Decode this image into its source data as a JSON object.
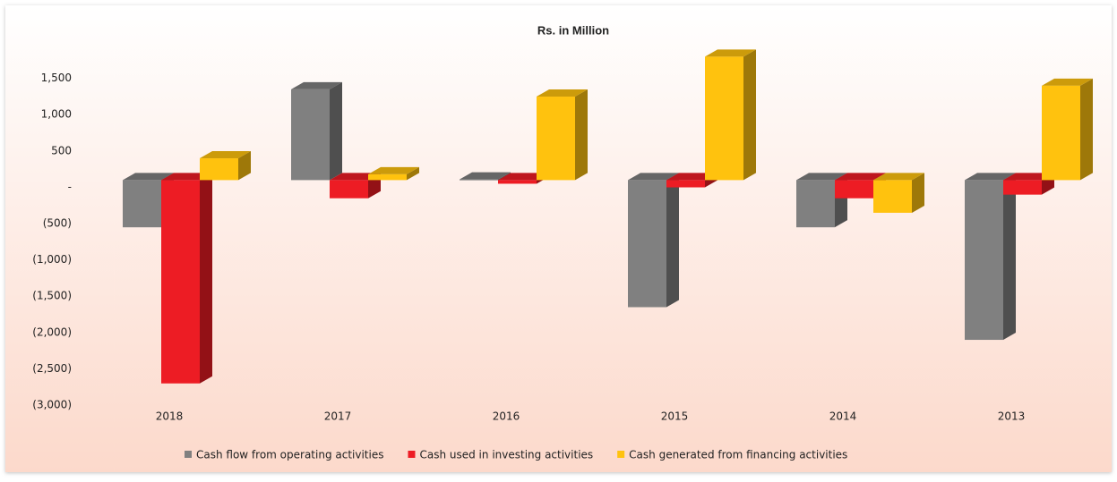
{
  "chart_data": {
    "type": "bar3d",
    "title": "Rs. in Million",
    "categories": [
      "2018",
      "2017",
      "2016",
      "2015",
      "2014",
      "2013"
    ],
    "series": [
      {
        "name": "Cash flow from operating activities",
        "color": "#808080",
        "values": [
          -650,
          1250,
          10,
          -1750,
          -650,
          -2200
        ]
      },
      {
        "name": "Cash used in investing activities",
        "color": "#ed1c24",
        "values": [
          -2800,
          -250,
          -50,
          -100,
          -250,
          -200
        ]
      },
      {
        "name": "Cash generated from financing activities",
        "color": "#ffc20e",
        "values": [
          300,
          80,
          1150,
          1700,
          -450,
          1300
        ]
      }
    ],
    "ylim": [
      -3000,
      2000
    ],
    "yticks": [
      {
        "value": 1500,
        "label": "1,500"
      },
      {
        "value": 1000,
        "label": "1,000"
      },
      {
        "value": 500,
        "label": "500"
      },
      {
        "value": 0,
        "label": "-"
      },
      {
        "value": -500,
        "label": "(500)"
      },
      {
        "value": -1000,
        "label": "(1,000)"
      },
      {
        "value": -1500,
        "label": "(1,500)"
      },
      {
        "value": -2000,
        "label": "(2,000)"
      },
      {
        "value": -2500,
        "label": "(2,500)"
      },
      {
        "value": -3000,
        "label": "(3,000)"
      }
    ],
    "grid": false,
    "legend": "bottom"
  }
}
